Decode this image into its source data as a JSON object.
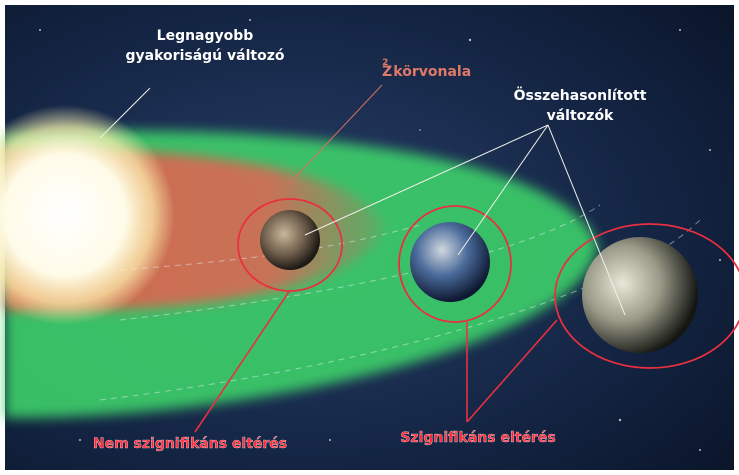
{
  "labels": {
    "top_left": [
      "Legnagyobb",
      "gyakoriságú változó"
    ],
    "contour": {
      "base": "Z",
      "sup": "2",
      "rest": " körvonala"
    },
    "compared": [
      "Összehasonlított",
      "változók"
    ],
    "not_significant": "Nem szignifikáns eltérés",
    "significant": "Szignifikáns eltérés"
  }
}
